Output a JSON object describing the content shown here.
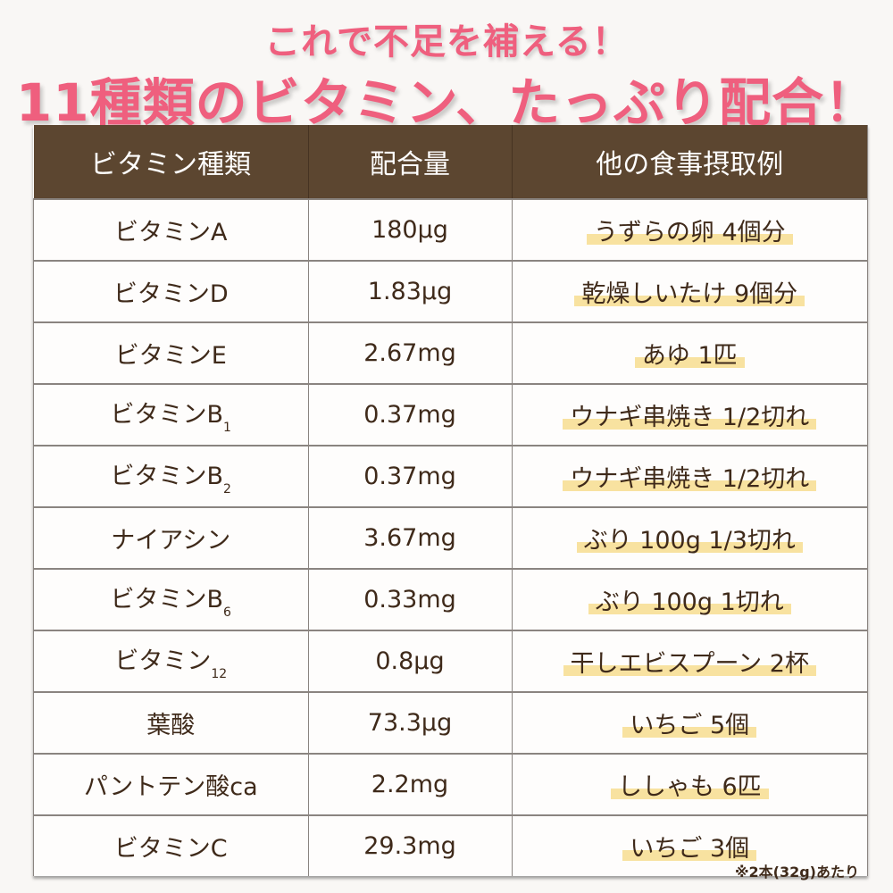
{
  "headline": {
    "line1": "これで不足を補える！",
    "line2": "11種類のビタミン、たっぷり配合！"
  },
  "table": {
    "columns": [
      "ビタミン種類",
      "配合量",
      "他の食事摂取例"
    ],
    "rows": [
      {
        "name": "ビタミンA",
        "sub": "",
        "amount": "180μg",
        "example": "うずらの卵 4個分"
      },
      {
        "name": "ビタミンD",
        "sub": "",
        "amount": "1.83μg",
        "example": "乾燥しいたけ 9個分"
      },
      {
        "name": "ビタミンE",
        "sub": "",
        "amount": "2.67mg",
        "example": "あゆ 1匹"
      },
      {
        "name": "ビタミンB",
        "sub": "1",
        "amount": "0.37mg",
        "example": "ウナギ串焼き 1/2切れ"
      },
      {
        "name": "ビタミンB",
        "sub": "2",
        "amount": "0.37mg",
        "example": "ウナギ串焼き 1/2切れ"
      },
      {
        "name": "ナイアシン",
        "sub": "",
        "amount": "3.67mg",
        "example": "ぶり 100g 1/3切れ"
      },
      {
        "name": "ビタミンB",
        "sub": "6",
        "amount": "0.33mg",
        "example": "ぶり 100g 1切れ"
      },
      {
        "name": "ビタミン",
        "sub": "12",
        "amount": "0.8μg",
        "example": "干しエビスプーン 2杯"
      },
      {
        "name": "葉酸",
        "sub": "",
        "amount": "73.3μg",
        "example": "いちご 5個"
      },
      {
        "name": "パントテン酸ca",
        "sub": "",
        "amount": "2.2mg",
        "example": "ししゃも 6匹"
      },
      {
        "name": "ビタミンC",
        "sub": "",
        "amount": "29.3mg",
        "example": "いちご 3個"
      }
    ]
  },
  "footnote": "※2本(32g)あたり",
  "colors": {
    "headline": "#ef5f7e",
    "header_bg": "#5c4630",
    "highlight": "#f8e2a0",
    "text": "#3f2a1a"
  }
}
